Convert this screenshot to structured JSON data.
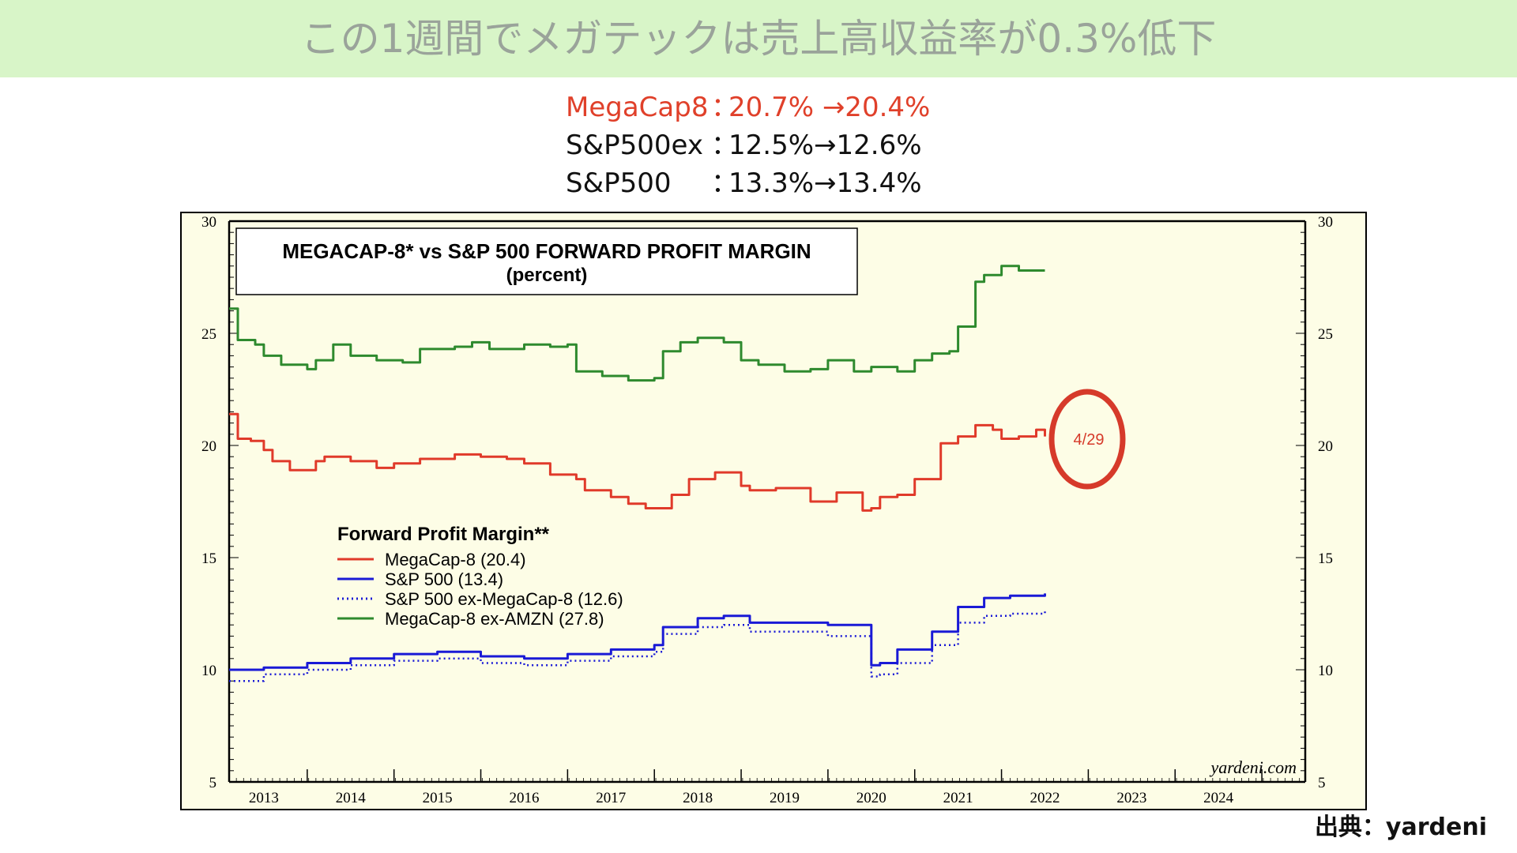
{
  "banner": {
    "title": "この1週間でメガテックは売上高収益率が0.3%低下"
  },
  "summary": {
    "rows": [
      {
        "label": "MegaCap8",
        "sep": "：",
        "value": "20.7% →20.4%",
        "color": "#e0402a"
      },
      {
        "label": "S&P500ex",
        "sep": "：",
        "value": "12.5%→12.6%",
        "color": "#111111"
      },
      {
        "label": "S&P500",
        "sep": "：",
        "value": "13.3%→13.4%",
        "color": "#111111"
      }
    ]
  },
  "source_label": "出典：yardeni",
  "chart": {
    "title_line1": "MEGACAP-8* vs S&P 500 FORWARD PROFIT MARGIN",
    "title_line2": "(percent)",
    "legend_title": "Forward Profit Margin**",
    "watermark": "yardeni.com",
    "annotation": "4/29",
    "background": "#fdfde6",
    "annotation_color": "#d63a2a"
  },
  "chart_data": {
    "type": "line",
    "title": "MEGACAP-8* vs S&P 500 FORWARD PROFIT MARGIN",
    "subtitle": "(percent)",
    "ylim": [
      5,
      30
    ],
    "yticks": [
      5,
      10,
      15,
      20,
      25,
      30
    ],
    "xlim": [
      2012.6,
      2025.0
    ],
    "x_tick_labels": [
      "2013",
      "2014",
      "2015",
      "2016",
      "2017",
      "2018",
      "2019",
      "2020",
      "2021",
      "2022",
      "2023",
      "2024"
    ],
    "grid": false,
    "legend_position": "left",
    "series": [
      {
        "name": "MegaCap-8 (20.4)",
        "color": "#e03a2a",
        "style": "solid",
        "x": [
          2012.6,
          2012.7,
          2012.85,
          2013.0,
          2013.1,
          2013.3,
          2013.6,
          2013.7,
          2014.0,
          2014.3,
          2014.5,
          2014.8,
          2015.2,
          2015.5,
          2015.8,
          2016.0,
          2016.3,
          2016.6,
          2016.7,
          2017.0,
          2017.2,
          2017.4,
          2017.7,
          2017.9,
          2018.2,
          2018.5,
          2018.6,
          2018.9,
          2019.3,
          2019.6,
          2019.9,
          2020.0,
          2020.1,
          2020.3,
          2020.5,
          2020.8,
          2021.0,
          2021.2,
          2021.4,
          2021.5,
          2021.7,
          2021.9,
          2022.0
        ],
        "y": [
          21.4,
          20.3,
          20.2,
          19.8,
          19.3,
          18.9,
          19.3,
          19.5,
          19.3,
          19.0,
          19.2,
          19.4,
          19.6,
          19.5,
          19.4,
          19.2,
          18.7,
          18.5,
          18.0,
          17.7,
          17.4,
          17.2,
          17.8,
          18.5,
          18.8,
          18.2,
          18.0,
          18.1,
          17.5,
          17.9,
          17.1,
          17.2,
          17.7,
          17.8,
          18.5,
          20.1,
          20.4,
          20.9,
          20.7,
          20.3,
          20.4,
          20.7,
          20.4
        ]
      },
      {
        "name": "S&P 500 (13.4)",
        "color": "#1a1ad6",
        "style": "solid",
        "x": [
          2012.6,
          2013.0,
          2013.5,
          2014.0,
          2014.5,
          2015.0,
          2015.5,
          2016.0,
          2016.5,
          2017.0,
          2017.5,
          2017.6,
          2018.0,
          2018.3,
          2018.6,
          2019.0,
          2019.5,
          2019.9,
          2020.0,
          2020.1,
          2020.3,
          2020.7,
          2021.0,
          2021.3,
          2021.6,
          2022.0
        ],
        "y": [
          10.0,
          10.1,
          10.3,
          10.5,
          10.7,
          10.8,
          10.6,
          10.5,
          10.7,
          10.9,
          11.1,
          11.9,
          12.3,
          12.4,
          12.1,
          12.1,
          12.0,
          12.0,
          10.2,
          10.3,
          10.9,
          11.7,
          12.8,
          13.2,
          13.3,
          13.4
        ]
      },
      {
        "name": "S&P 500 ex-MegaCap-8 (12.6)",
        "color": "#1a1ad6",
        "style": "dotted",
        "x": [
          2012.6,
          2013.0,
          2013.5,
          2014.0,
          2014.5,
          2015.0,
          2015.5,
          2016.0,
          2016.5,
          2017.0,
          2017.5,
          2017.6,
          2018.0,
          2018.3,
          2018.6,
          2019.0,
          2019.5,
          2019.9,
          2020.0,
          2020.1,
          2020.3,
          2020.7,
          2021.0,
          2021.3,
          2021.6,
          2022.0
        ],
        "y": [
          9.5,
          9.8,
          10.0,
          10.2,
          10.4,
          10.5,
          10.3,
          10.2,
          10.4,
          10.6,
          10.8,
          11.6,
          11.9,
          12.0,
          11.7,
          11.7,
          11.5,
          11.5,
          9.7,
          9.8,
          10.3,
          11.1,
          12.1,
          12.4,
          12.5,
          12.6
        ]
      },
      {
        "name": "MegaCap-8 ex-AMZN (27.8)",
        "color": "#2e8a2e",
        "style": "solid",
        "x": [
          2012.6,
          2012.7,
          2012.9,
          2013.0,
          2013.2,
          2013.5,
          2013.6,
          2013.8,
          2014.0,
          2014.3,
          2014.6,
          2014.8,
          2015.2,
          2015.4,
          2015.6,
          2016.0,
          2016.3,
          2016.5,
          2016.6,
          2016.9,
          2017.2,
          2017.5,
          2017.6,
          2017.8,
          2018.0,
          2018.3,
          2018.5,
          2018.7,
          2019.0,
          2019.3,
          2019.5,
          2019.8,
          2020.0,
          2020.3,
          2020.5,
          2020.7,
          2020.9,
          2021.0,
          2021.2,
          2021.3,
          2021.5,
          2021.7,
          2022.0
        ],
        "y": [
          26.1,
          24.7,
          24.5,
          24.0,
          23.6,
          23.4,
          23.8,
          24.5,
          24.0,
          23.8,
          23.7,
          24.3,
          24.4,
          24.6,
          24.3,
          24.5,
          24.4,
          24.5,
          23.3,
          23.1,
          22.9,
          23.0,
          24.2,
          24.6,
          24.8,
          24.6,
          23.8,
          23.6,
          23.3,
          23.4,
          23.8,
          23.3,
          23.5,
          23.3,
          23.8,
          24.1,
          24.2,
          25.3,
          27.3,
          27.6,
          28.0,
          27.8,
          27.8
        ]
      }
    ]
  }
}
